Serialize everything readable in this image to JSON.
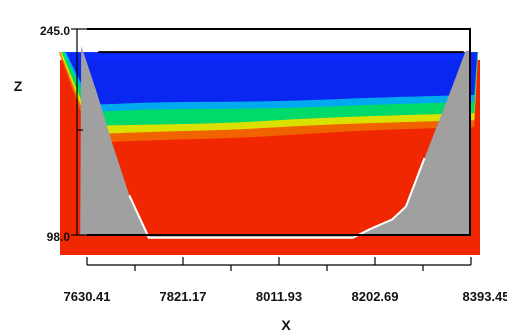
{
  "chart_data": {
    "type": "heatmap",
    "title": "",
    "xlabel": "X",
    "ylabel": "Z",
    "x_ticks": [
      "7630.41",
      "7821.17",
      "8011.93",
      "8202.69",
      "8393.45"
    ],
    "x_tick_values": [
      7630.41,
      7821.17,
      8011.93,
      8202.69,
      8393.45
    ],
    "xlim": [
      7630.41,
      8393.45
    ],
    "y_ticks": [
      "245.0",
      "98.0"
    ],
    "ylim": [
      98.0,
      245.0
    ],
    "grid": false,
    "legend": "none",
    "colormap": [
      "#0000ff",
      "#00c8ff",
      "#00ff66",
      "#ffff00",
      "#ff7a00",
      "#ff2a00"
    ],
    "colors": {
      "terrain": "#a0a0a0",
      "background": "#ffffff",
      "frame": "#000000"
    },
    "fluid_surface_z": 228.5,
    "terrain_profile": [
      {
        "x": 7618.9,
        "z": 233.0
      },
      {
        "x": 7648.8,
        "z": 200.8
      },
      {
        "x": 7681.3,
        "z": 162.8
      },
      {
        "x": 7714.5,
        "z": 126.3
      },
      {
        "x": 7753.0,
        "z": 96.3
      },
      {
        "x": 7753.0,
        "z": 96.0
      },
      {
        "x": 7908.0,
        "z": 96.0
      },
      {
        "x": 8010.0,
        "z": 96.0
      },
      {
        "x": 8159.0,
        "z": 96.0
      },
      {
        "x": 8192.0,
        "z": 102.1
      },
      {
        "x": 8237.0,
        "z": 109.1
      },
      {
        "x": 8264.0,
        "z": 118.3
      },
      {
        "x": 8301.0,
        "z": 152.9
      },
      {
        "x": 8353.0,
        "z": 200.8
      },
      {
        "x": 8383.0,
        "z": 229.5
      },
      {
        "x": 8393.0,
        "z": 229.5
      }
    ],
    "color_band_boundaries": [
      {
        "name": "blue-cyan",
        "points": [
          {
            "x": 7640,
            "z": 186
          },
          {
            "x": 7790,
            "z": 188
          },
          {
            "x": 7920,
            "z": 188
          },
          {
            "x": 8060,
            "z": 189
          },
          {
            "x": 8200,
            "z": 191
          },
          {
            "x": 8400,
            "z": 193
          }
        ]
      },
      {
        "name": "cyan-green",
        "points": [
          {
            "x": 7640,
            "z": 176
          },
          {
            "x": 7790,
            "z": 177
          },
          {
            "x": 7920,
            "z": 178
          },
          {
            "x": 8060,
            "z": 181
          },
          {
            "x": 8200,
            "z": 183
          },
          {
            "x": 8400,
            "z": 185
          }
        ]
      },
      {
        "name": "green-yellow",
        "points": [
          {
            "x": 7640,
            "z": 170
          },
          {
            "x": 7790,
            "z": 172
          },
          {
            "x": 7920,
            "z": 173
          },
          {
            "x": 8060,
            "z": 176
          },
          {
            "x": 8200,
            "z": 178
          },
          {
            "x": 8400,
            "z": 180
          }
        ]
      },
      {
        "name": "yellow-orange",
        "points": [
          {
            "x": 7640,
            "z": 164
          },
          {
            "x": 7790,
            "z": 166
          },
          {
            "x": 7920,
            "z": 167
          },
          {
            "x": 8060,
            "z": 170
          },
          {
            "x": 8200,
            "z": 173
          },
          {
            "x": 8400,
            "z": 175
          }
        ]
      }
    ]
  }
}
